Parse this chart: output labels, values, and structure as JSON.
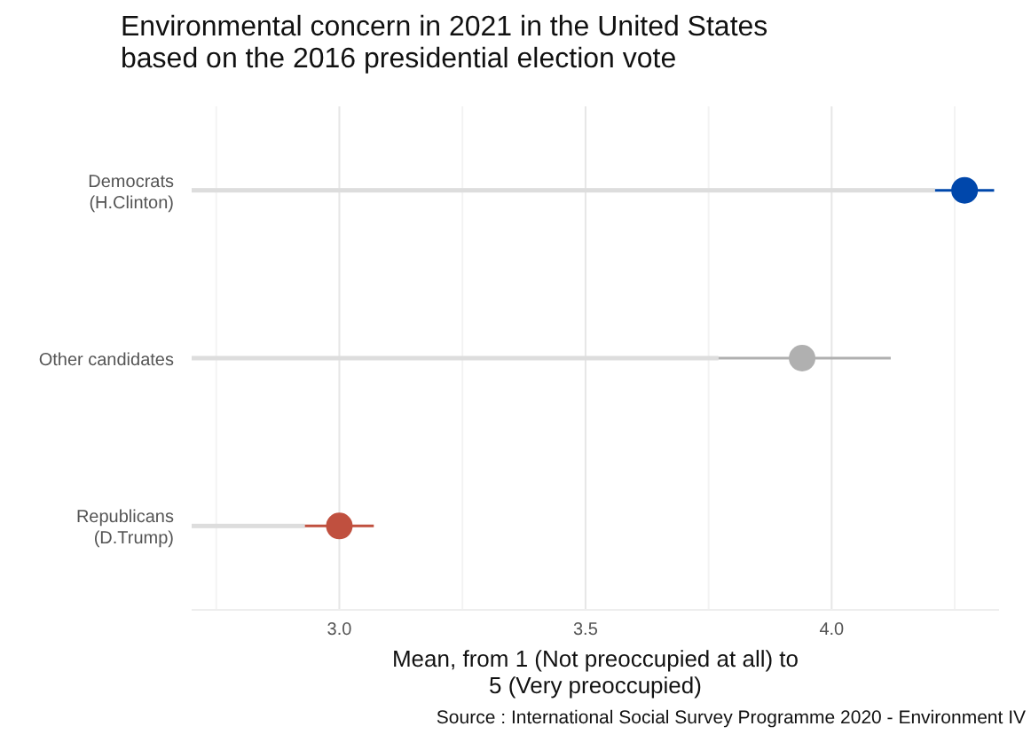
{
  "chart_data": {
    "type": "scatter",
    "orientation": "horizontal",
    "title": "Environmental concern in 2021 in the United States\nbased on the 2016 presidential election vote",
    "xlabel": "Mean, from 1 (Not preoccupied at all) to\n5 (Very preoccupied)",
    "annotations": [
      "Source : International Social Survey Programme 2020 - Environment IV"
    ],
    "categories": [
      "Democrats\n(H.Clinton)",
      "Other candidates",
      "Republicans\n(D.Trump)"
    ],
    "series": [
      {
        "type": "bar",
        "color": "#dddddd",
        "values": [
          4.21,
          3.77,
          2.93
        ]
      },
      {
        "colors": [
          "#0047ab",
          "#b0b0b0",
          "#c0503f"
        ],
        "values": [
          4.27,
          3.94,
          3.0
        ],
        "errors": [
          [
            4.21,
            4.33
          ],
          [
            3.77,
            4.12
          ],
          [
            2.93,
            3.07
          ]
        ]
      }
    ],
    "xlim": [
      2.7,
      4.34
    ],
    "xticks": [
      {
        "value": 2.75,
        "label": null
      },
      {
        "value": 3.0,
        "label": "3.0"
      },
      {
        "value": 3.25,
        "label": null
      },
      3.5,
      {
        "value": 3.75,
        "label": null
      },
      {
        "value": 4.0,
        "label": "4.0"
      },
      {
        "value": 4.25,
        "label": null
      }
    ],
    "grid": "x",
    "marker": "circle"
  }
}
